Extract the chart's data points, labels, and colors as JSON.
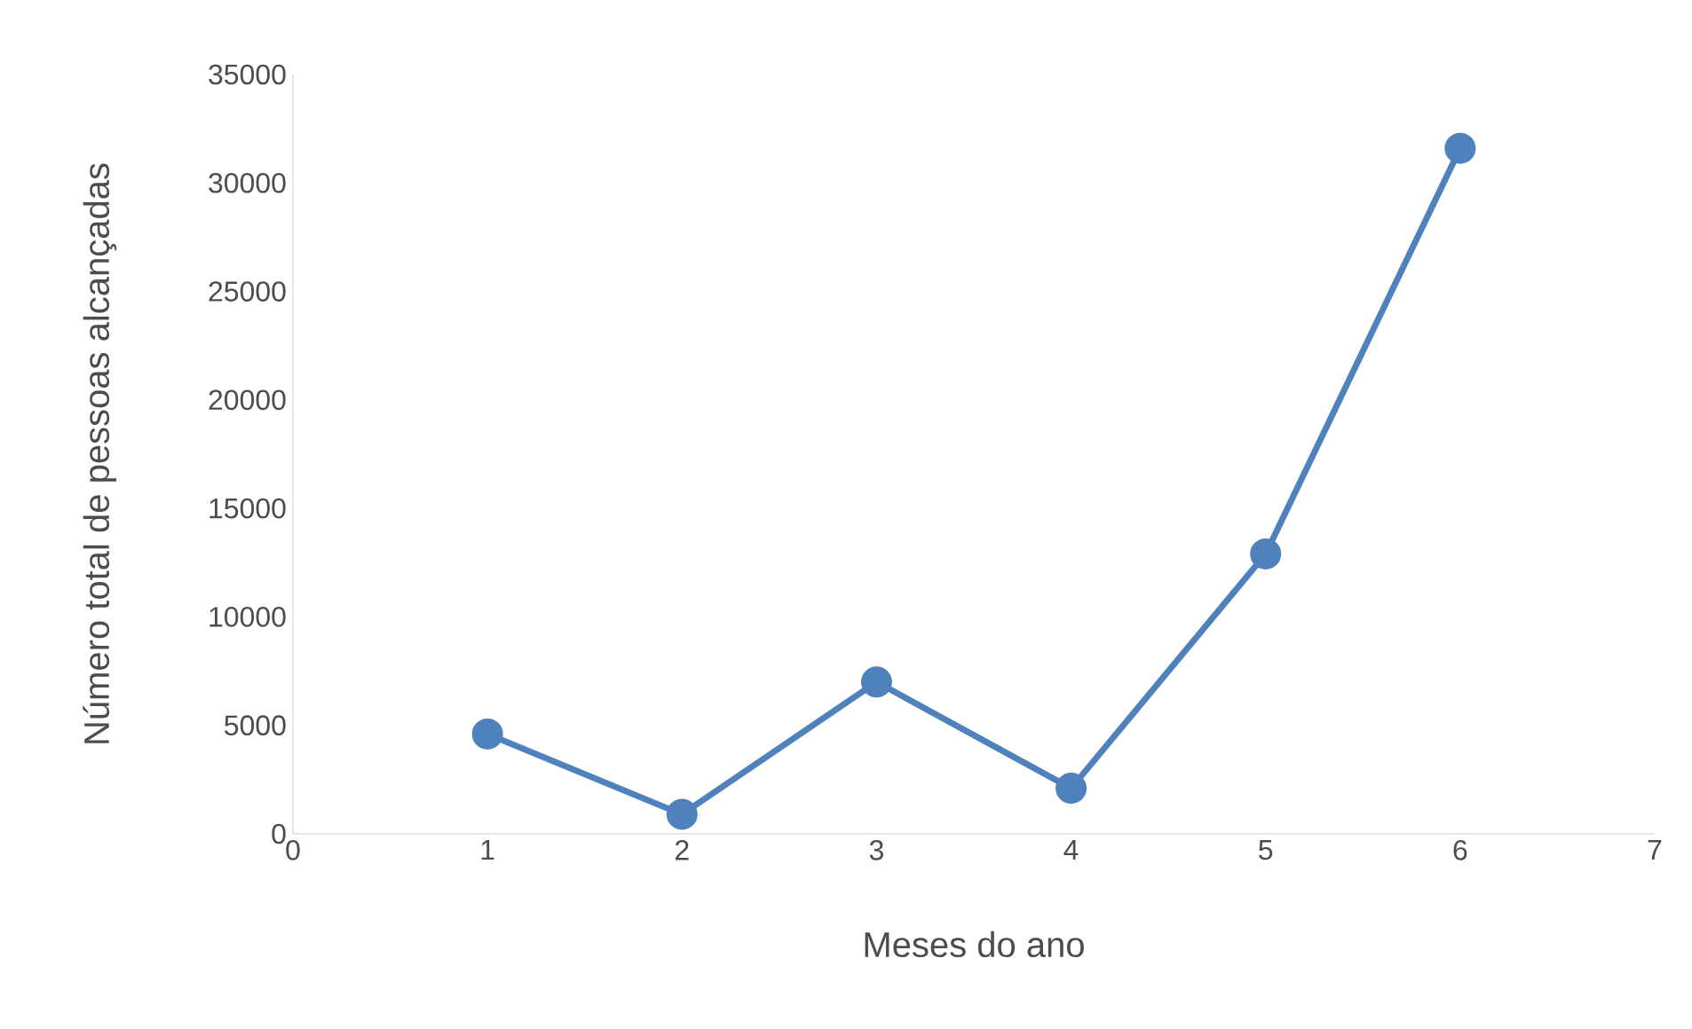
{
  "chart_data": {
    "type": "line",
    "xlabel": "Meses do ano",
    "ylabel": "Número total de pessoas alcançadas",
    "x": [
      1,
      2,
      3,
      4,
      5,
      6
    ],
    "series": [
      {
        "color": "#4f81bd",
        "values": [
          4600,
          900,
          7000,
          2100,
          12900,
          31600
        ]
      }
    ],
    "xlim": [
      0,
      7
    ],
    "xticks": [
      0,
      1,
      2,
      3,
      4,
      5,
      6,
      7
    ],
    "ylim": [
      0,
      35000
    ],
    "yticks": [
      0,
      5000,
      10000,
      15000,
      20000,
      25000,
      30000,
      35000
    ],
    "marker": "circle",
    "line_style": "solid"
  }
}
